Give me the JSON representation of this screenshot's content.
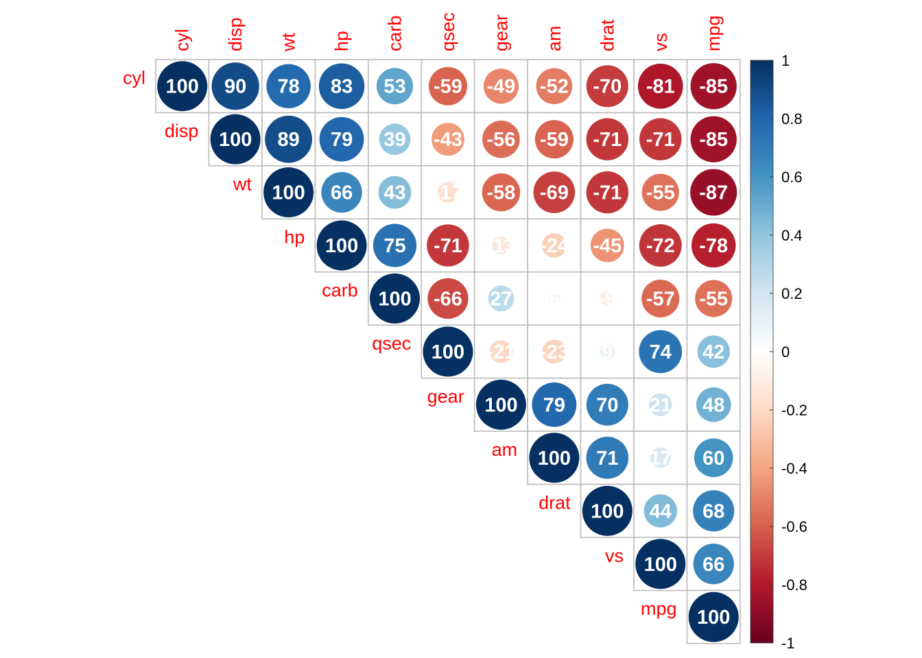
{
  "chart_data": {
    "type": "heatmap",
    "variables": [
      "cyl",
      "disp",
      "wt",
      "hp",
      "carb",
      "qsec",
      "gear",
      "am",
      "drat",
      "vs",
      "mpg"
    ],
    "matrix": [
      [
        100,
        90,
        78,
        83,
        53,
        -59,
        -49,
        -52,
        -70,
        -81,
        -85
      ],
      [
        null,
        100,
        89,
        79,
        39,
        -43,
        -56,
        -59,
        -71,
        -71,
        -85
      ],
      [
        null,
        null,
        100,
        66,
        43,
        -17,
        -58,
        -69,
        -71,
        -55,
        -87
      ],
      [
        null,
        null,
        null,
        100,
        75,
        -71,
        -13,
        -24,
        -45,
        -72,
        -78
      ],
      [
        null,
        null,
        null,
        null,
        100,
        -66,
        27,
        6,
        -9,
        -57,
        -55
      ],
      [
        null,
        null,
        null,
        null,
        null,
        100,
        -21,
        -23,
        9,
        74,
        42
      ],
      [
        null,
        null,
        null,
        null,
        null,
        null,
        100,
        79,
        70,
        21,
        48
      ],
      [
        null,
        null,
        null,
        null,
        null,
        null,
        null,
        100,
        71,
        17,
        60
      ],
      [
        null,
        null,
        null,
        null,
        null,
        null,
        null,
        null,
        100,
        44,
        68
      ],
      [
        null,
        null,
        null,
        null,
        null,
        null,
        null,
        null,
        null,
        100,
        66
      ],
      [
        null,
        null,
        null,
        null,
        null,
        null,
        null,
        null,
        null,
        null,
        100
      ]
    ],
    "colorbar": {
      "min": -1,
      "max": 1,
      "ticks": [
        "1",
        "0.8",
        "0.6",
        "0.4",
        "0.2",
        "0",
        "-0.2",
        "-0.4",
        "-0.6",
        "-0.8",
        "-1"
      ]
    },
    "label_color": "#ff0000",
    "value_label_color": "#ffffff",
    "grid_color": "#bbbbbb",
    "palette": [
      "#67001F",
      "#B2182B",
      "#D6604D",
      "#F4A582",
      "#FDDBC7",
      "#FFFFFF",
      "#D1E5F0",
      "#92C5DE",
      "#4393C3",
      "#2166AC",
      "#053061"
    ]
  }
}
